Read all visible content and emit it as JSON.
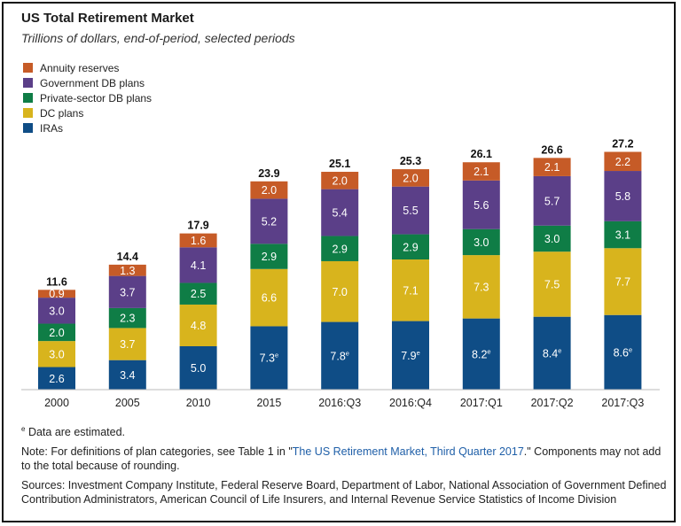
{
  "title": "US Total Retirement Market",
  "subtitle": "Trillions of dollars, end-of-period, selected periods",
  "colors": {
    "annuity": "#c65b27",
    "gov_db": "#5b3f88",
    "private_db": "#0f7d46",
    "dc": "#d8b41d",
    "ira": "#0f4d86"
  },
  "chart_data": {
    "type": "bar",
    "stacked": true,
    "categories": [
      "2000",
      "2005",
      "2010",
      "2015",
      "2016:Q3",
      "2016:Q4",
      "2017:Q1",
      "2017:Q2",
      "2017:Q3"
    ],
    "series": [
      {
        "key": "ira",
        "name": "IRAs",
        "values": [
          2.6,
          3.4,
          5.0,
          7.3,
          7.8,
          7.9,
          8.2,
          8.4,
          8.6
        ],
        "estimated": [
          false,
          false,
          false,
          true,
          true,
          true,
          true,
          true,
          true
        ]
      },
      {
        "key": "dc",
        "name": "DC plans",
        "values": [
          3.0,
          3.7,
          4.8,
          6.6,
          7.0,
          7.1,
          7.3,
          7.5,
          7.7
        ]
      },
      {
        "key": "private_db",
        "name": "Private-sector DB plans",
        "values": [
          2.0,
          2.3,
          2.5,
          2.9,
          2.9,
          2.9,
          3.0,
          3.0,
          3.1
        ]
      },
      {
        "key": "gov_db",
        "name": "Government DB plans",
        "values": [
          3.0,
          3.7,
          4.1,
          5.2,
          5.4,
          5.5,
          5.6,
          5.7,
          5.8
        ]
      },
      {
        "key": "annuity",
        "name": "Annuity reserves",
        "values": [
          0.9,
          1.3,
          1.6,
          2.0,
          2.0,
          2.0,
          2.1,
          2.1,
          2.2
        ]
      }
    ],
    "totals": [
      11.6,
      14.4,
      17.9,
      23.9,
      25.1,
      25.3,
      26.1,
      26.6,
      27.2
    ],
    "ylim": [
      0,
      27.2
    ],
    "grid": false,
    "legend_position": "top-left",
    "legend_order": [
      "annuity",
      "gov_db",
      "private_db",
      "dc",
      "ira"
    ]
  },
  "footnote": {
    "marker": "e",
    "text": "Data are estimated."
  },
  "note": {
    "prefix": "Note: For definitions of plan categories, see Table 1 in \"",
    "link": "The US Retirement Market, Third Quarter 2017",
    "suffix": ".\" Components may not add to the total because of rounding."
  },
  "sources": "Sources: Investment Company Institute, Federal Reserve Board, Department of Labor, National Association of Government Defined Contribution Administrators, American Council of Life Insurers, and Internal Revenue Service Statistics of Income Division"
}
